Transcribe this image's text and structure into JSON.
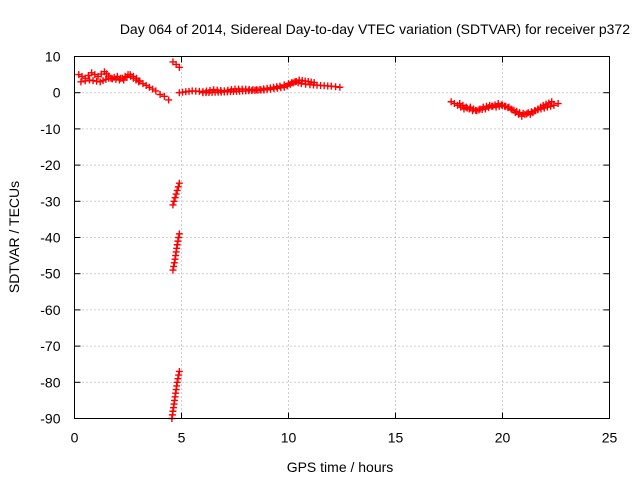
{
  "chart_data": {
    "type": "scatter",
    "title": "Day 064 of 2014, Sidereal Day-to-day VTEC variation (SDTVAR) for receiver p372",
    "xlabel": "GPS time / hours",
    "ylabel": "SDTVAR / TECUs",
    "xlim": [
      0,
      25
    ],
    "ylim": [
      -90,
      10
    ],
    "xticks": [
      0,
      5,
      10,
      15,
      20,
      25
    ],
    "yticks": [
      10,
      0,
      -10,
      -20,
      -30,
      -40,
      -50,
      -60,
      -70,
      -80,
      -90
    ],
    "grid": true,
    "marker": "plus",
    "color": "#ff0000",
    "series": [
      {
        "name": "SDTVAR",
        "segments": [
          {
            "x": [
              0.2,
              0.5,
              0.8,
              1.1,
              1.4,
              1.7,
              2.0,
              2.3,
              2.6,
              2.9,
              3.2,
              3.5,
              3.8,
              4.0,
              4.2,
              4.4
            ],
            "y": [
              5.0,
              4.0,
              5.5,
              4.5,
              5.8,
              4.0,
              4.5,
              3.5,
              5.0,
              4.0,
              2.5,
              1.5,
              0.5,
              -0.5,
              -1.0,
              -2.0
            ]
          },
          {
            "x": [
              0.3,
              0.7,
              1.2,
              1.6,
              2.1,
              2.5,
              3.0
            ],
            "y": [
              3.0,
              3.5,
              3.0,
              4.0,
              3.5,
              5.0,
              3.0
            ]
          },
          {
            "x": [
              4.6,
              4.75,
              4.9
            ],
            "y": [
              8.5,
              7.8,
              7.0
            ]
          },
          {
            "x": [
              4.6,
              4.7,
              4.8,
              4.9
            ],
            "y": [
              -31,
              -29,
              -27,
              -25
            ]
          },
          {
            "x": [
              4.6,
              4.7,
              4.8,
              4.9
            ],
            "y": [
              -49,
              -46,
              -42,
              -39
            ]
          },
          {
            "x": [
              4.55,
              4.6,
              4.65,
              4.7,
              4.8,
              4.9
            ],
            "y": [
              -90,
              -88,
              -86,
              -84,
              -80,
              -77
            ]
          },
          {
            "x": [
              4.9,
              5.5,
              6.0,
              6.5,
              7.0,
              7.5,
              8.0,
              8.5,
              9.0,
              9.3,
              9.6,
              10.0,
              10.3,
              10.6,
              11.0,
              11.5,
              12.0,
              12.4
            ],
            "y": [
              0.0,
              0.5,
              0.3,
              0.8,
              0.5,
              1.0,
              1.0,
              0.8,
              1.2,
              1.5,
              1.8,
              2.5,
              3.0,
              2.5,
              2.2,
              2.0,
              1.8,
              1.5
            ]
          },
          {
            "x": [
              6.0,
              7.0,
              8.0,
              9.0,
              9.8,
              10.5,
              11.2
            ],
            "y": [
              0.0,
              0.2,
              0.5,
              0.8,
              1.5,
              3.5,
              2.8
            ]
          },
          {
            "x": [
              17.6,
              17.9,
              18.2,
              18.5,
              18.8,
              19.1,
              19.4,
              19.7,
              20.0,
              20.3,
              20.6,
              20.9,
              21.2,
              21.5,
              21.8,
              22.1,
              22.4,
              22.6
            ],
            "y": [
              -2.5,
              -3.5,
              -4.5,
              -4.0,
              -5.0,
              -4.0,
              -3.5,
              -4.0,
              -3.5,
              -4.0,
              -5.5,
              -6.5,
              -5.5,
              -5.0,
              -4.5,
              -4.0,
              -3.5,
              -3.0
            ]
          },
          {
            "x": [
              18.0,
              18.6,
              19.2,
              19.8,
              20.4,
              20.8,
              21.3,
              21.9,
              22.3
            ],
            "y": [
              -3.0,
              -5.0,
              -4.5,
              -3.0,
              -4.5,
              -5.5,
              -6.0,
              -3.5,
              -2.5
            ]
          }
        ]
      }
    ]
  }
}
